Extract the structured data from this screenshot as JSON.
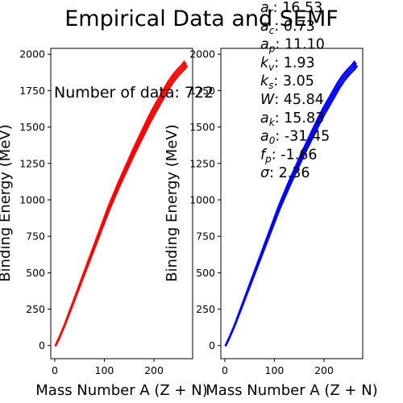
{
  "figure": {
    "title": "Empirical Data and SEMF",
    "annotation_label": "Number of data:",
    "annotation_value": "722",
    "params": [
      {
        "sym": "a",
        "sub": "r",
        "value": "16.53"
      },
      {
        "sym": "a",
        "sub": "c",
        "value": "0.73"
      },
      {
        "sym": "a",
        "sub": "p",
        "value": "11.10"
      },
      {
        "sym": "k",
        "sub": "v",
        "value": "1.93"
      },
      {
        "sym": "k",
        "sub": "s",
        "value": "3.05"
      },
      {
        "sym": "W",
        "sub": "",
        "value": "45.84"
      },
      {
        "sym": "a",
        "sub": "k",
        "value": "15.83"
      },
      {
        "sym": "a",
        "sub": "0",
        "value": "-31.45"
      },
      {
        "sym": "f",
        "sub": "p",
        "value": "-1.66"
      },
      {
        "sym": "σ",
        "sub": "",
        "value": "2.36"
      }
    ]
  },
  "chart_data": [
    {
      "type": "scatter",
      "xlabel": "Mass Number A (Z + N)",
      "ylabel": "Binding Energy (MeV)",
      "xlim": [
        -8,
        278
      ],
      "ylim": [
        -90,
        2040
      ],
      "xticks": [
        0,
        100,
        200
      ],
      "yticks": [
        0,
        250,
        500,
        750,
        1000,
        1250,
        1500,
        1750,
        2000
      ],
      "grid": false,
      "color": "#ff0000",
      "x": [
        2,
        10,
        20,
        30,
        40,
        50,
        60,
        70,
        80,
        90,
        100,
        110,
        120,
        130,
        140,
        150,
        160,
        170,
        180,
        190,
        200,
        210,
        220,
        230,
        240,
        250,
        260,
        264
      ],
      "y": [
        2,
        60,
        140,
        230,
        320,
        410,
        500,
        590,
        680,
        770,
        860,
        950,
        1030,
        1110,
        1185,
        1260,
        1335,
        1405,
        1475,
        1545,
        1610,
        1670,
        1730,
        1790,
        1840,
        1880,
        1915,
        1935
      ]
    },
    {
      "type": "scatter",
      "xlabel": "Mass Number A (Z + N)",
      "ylabel": "Binding Energy (MeV)",
      "xlim": [
        -8,
        278
      ],
      "ylim": [
        -90,
        2040
      ],
      "xticks": [
        0,
        100,
        200
      ],
      "yticks": [
        0,
        250,
        500,
        750,
        1000,
        1250,
        1500,
        1750,
        2000
      ],
      "grid": false,
      "color": "#0000ff",
      "x": [
        2,
        10,
        20,
        30,
        40,
        50,
        60,
        70,
        80,
        90,
        100,
        110,
        120,
        130,
        140,
        150,
        160,
        170,
        180,
        190,
        200,
        210,
        220,
        230,
        240,
        250,
        260,
        264
      ],
      "y": [
        2,
        60,
        140,
        230,
        320,
        410,
        500,
        590,
        680,
        770,
        860,
        950,
        1030,
        1110,
        1185,
        1260,
        1335,
        1405,
        1475,
        1545,
        1610,
        1670,
        1730,
        1790,
        1840,
        1880,
        1915,
        1935
      ]
    }
  ]
}
